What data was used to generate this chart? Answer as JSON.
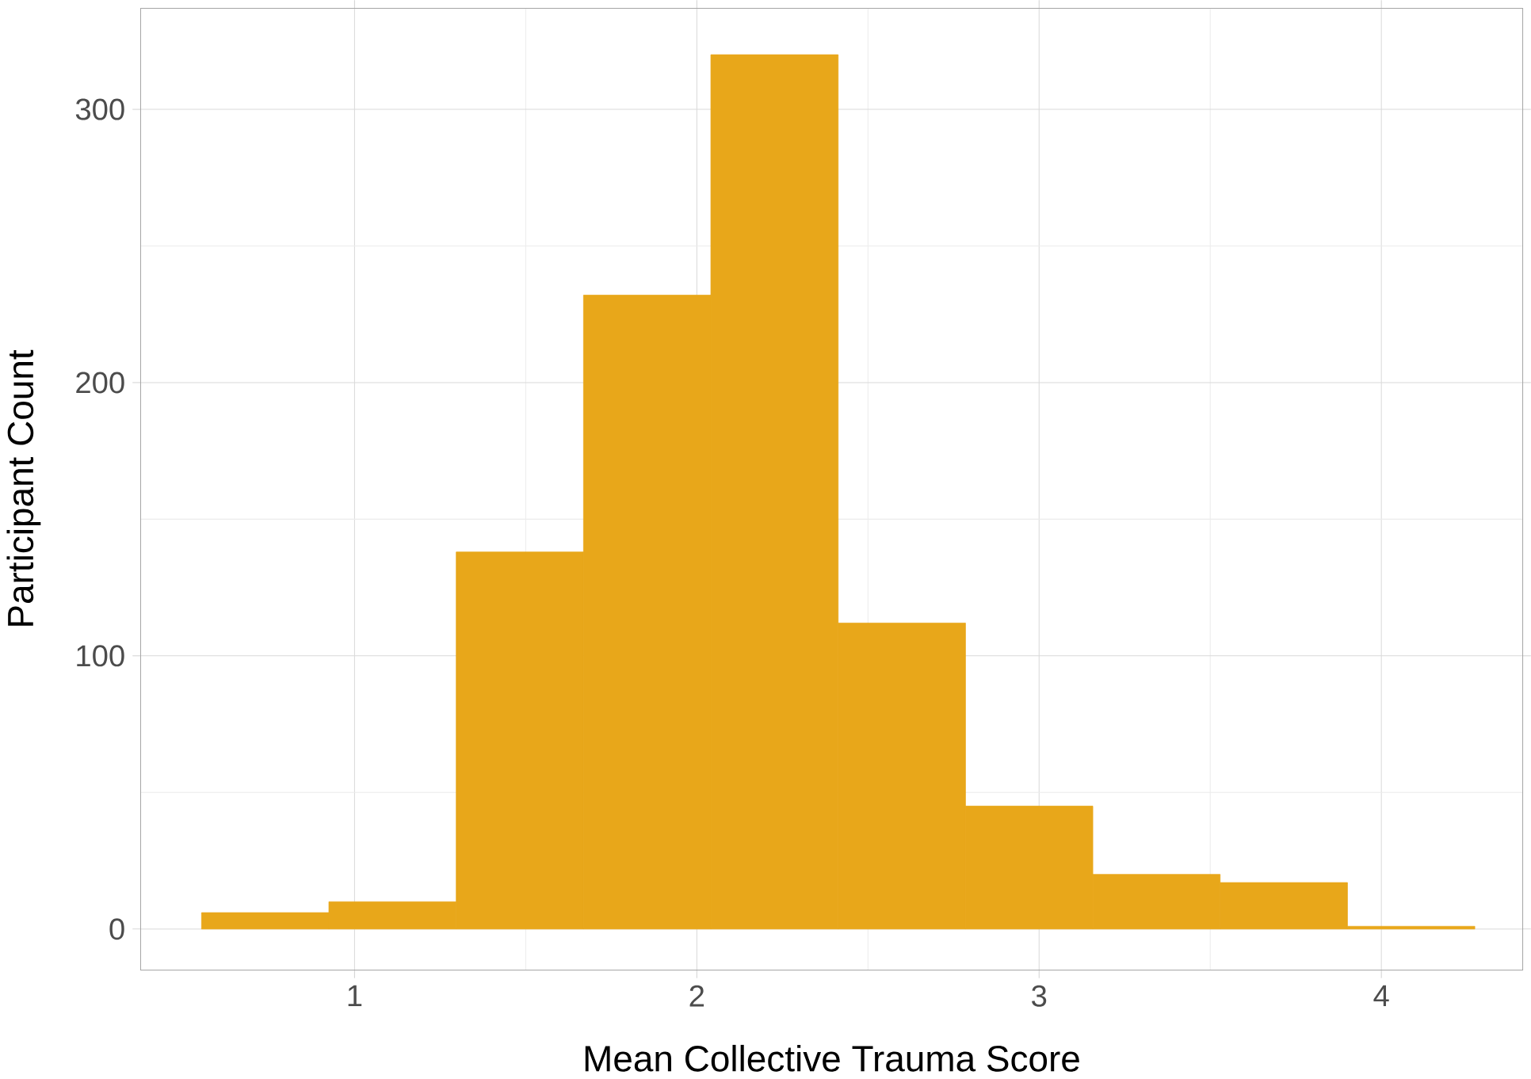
{
  "chart_data": {
    "type": "histogram",
    "xlabel": "Mean Collective Trauma Score",
    "ylabel": "Participant Count",
    "bins": [
      0.553,
      0.925,
      1.297,
      1.669,
      2.041,
      2.413,
      2.785,
      3.157,
      3.529,
      3.901,
      4.273
    ],
    "values": [
      6,
      10,
      138,
      232,
      320,
      112,
      45,
      20,
      17,
      1
    ],
    "color": "#e8a71a",
    "xlim": [
      0.375,
      4.413
    ],
    "ylim": [
      -15,
      337
    ],
    "xticks": [
      1,
      2,
      3,
      4
    ],
    "yticks": [
      0,
      100,
      200,
      300
    ],
    "grid": true
  }
}
